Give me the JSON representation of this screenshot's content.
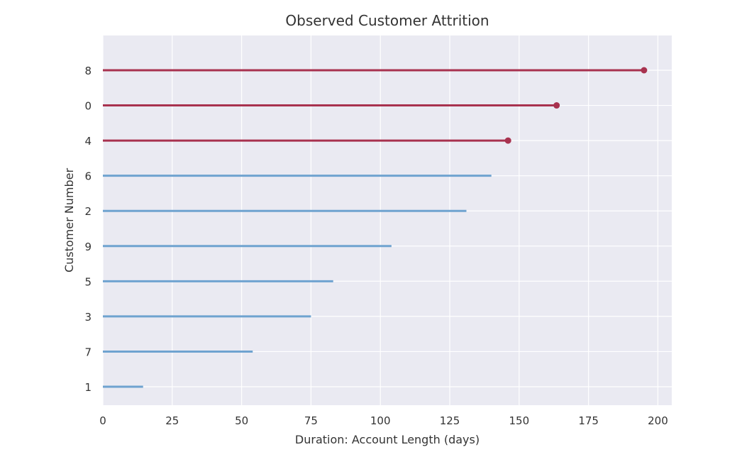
{
  "chart_data": {
    "type": "lifelines",
    "title": "Observed Customer Attrition",
    "xlabel": "Duration: Account Length (days)",
    "ylabel": "Customer Number",
    "xlim": [
      0,
      205
    ],
    "xticks": [
      0,
      25,
      50,
      75,
      100,
      125,
      150,
      175,
      200
    ],
    "grid": true,
    "colors": {
      "background": "#eaeaf2",
      "grid": "#ffffff",
      "churned": "#a8324f",
      "retained": "#6fa3d0"
    },
    "customers": [
      {
        "label": "8",
        "duration": 195,
        "churned": true
      },
      {
        "label": "0",
        "duration": 163.5,
        "churned": true
      },
      {
        "label": "4",
        "duration": 146,
        "churned": true
      },
      {
        "label": "6",
        "duration": 140,
        "churned": false
      },
      {
        "label": "2",
        "duration": 131,
        "churned": false
      },
      {
        "label": "9",
        "duration": 104,
        "churned": false
      },
      {
        "label": "5",
        "duration": 83,
        "churned": false
      },
      {
        "label": "3",
        "duration": 75,
        "churned": false
      },
      {
        "label": "7",
        "duration": 54,
        "churned": false
      },
      {
        "label": "1",
        "duration": 14.5,
        "churned": false
      }
    ]
  }
}
